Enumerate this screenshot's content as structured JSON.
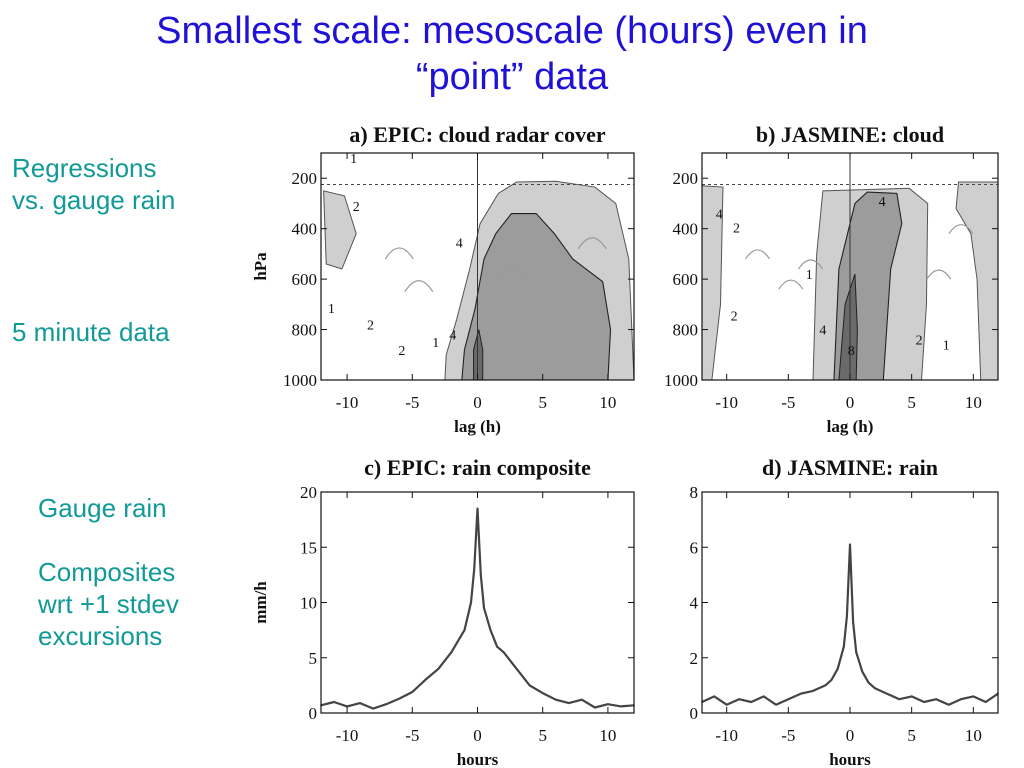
{
  "slide": {
    "title_line1": "Smallest scale: mesoscale (hours) even in",
    "title_line2": "“point” data",
    "notes": {
      "regressions": [
        "Regressions",
        "vs. gauge rain"
      ],
      "five_minute": "5 minute data",
      "gauge_rain": "Gauge rain",
      "composites": [
        "Composites",
        "wrt +1 stdev",
        "excursions"
      ]
    },
    "colors": {
      "title": "#1f12d6",
      "notes": "#129a98"
    }
  },
  "chart_data": [
    {
      "id": "a",
      "type": "heatmap",
      "title": "a) EPIC: cloud radar cover",
      "xlabel": "lag (h)",
      "ylabel": "hPa",
      "xlim": [
        -12,
        12
      ],
      "ylim": [
        1000,
        100
      ],
      "x_ticks": [
        -10,
        -5,
        0,
        5,
        10
      ],
      "y_ticks": [
        200,
        400,
        600,
        800,
        1000
      ],
      "contour_labels": [
        "1",
        "2",
        "4",
        "1",
        "2",
        "4",
        "2",
        "1"
      ],
      "colors": {
        "light": "#cfcfcf",
        "medium": "#9c9c9c",
        "dark": "#6a6a6a"
      }
    },
    {
      "id": "b",
      "type": "heatmap",
      "title": "b) JASMINE: cloud",
      "xlabel": "lag (h)",
      "ylabel": "",
      "xlim": [
        -12,
        12
      ],
      "ylim": [
        1000,
        100
      ],
      "x_ticks": [
        -10,
        -5,
        0,
        5,
        10
      ],
      "y_ticks": [
        200,
        400,
        600,
        800,
        1000
      ],
      "contour_labels": [
        "4",
        "2",
        "1",
        "2",
        "4",
        "8",
        "4",
        "2",
        "1"
      ],
      "colors": {
        "light": "#cfcfcf",
        "medium": "#9c9c9c",
        "dark": "#6a6a6a"
      }
    },
    {
      "id": "c",
      "type": "line",
      "title": "c) EPIC: rain composite",
      "xlabel": "hours",
      "ylabel": "mm/h",
      "xlim": [
        -12,
        12
      ],
      "ylim": [
        0,
        20
      ],
      "x_ticks": [
        -10,
        -5,
        0,
        5,
        10
      ],
      "y_ticks": [
        0,
        5,
        10,
        15,
        20
      ],
      "x": [
        -12,
        -11,
        -10,
        -9,
        -8,
        -7,
        -6,
        -5,
        -4,
        -3,
        -2,
        -1.5,
        -1,
        -0.5,
        -0.25,
        0,
        0.25,
        0.5,
        1,
        1.5,
        2,
        3,
        4,
        5,
        6,
        7,
        8,
        9,
        10,
        11,
        12
      ],
      "values": [
        0.7,
        1.0,
        0.6,
        0.9,
        0.4,
        0.8,
        1.3,
        1.9,
        3.0,
        4.0,
        5.5,
        6.5,
        7.5,
        10.0,
        13.0,
        18.5,
        12.5,
        9.5,
        7.5,
        6.0,
        5.5,
        4.0,
        2.5,
        1.8,
        1.2,
        0.9,
        1.2,
        0.5,
        0.8,
        0.6,
        0.7
      ]
    },
    {
      "id": "d",
      "type": "line",
      "title": "d) JASMINE: rain",
      "xlabel": "hours",
      "ylabel": "",
      "xlim": [
        -12,
        12
      ],
      "ylim": [
        0,
        8
      ],
      "x_ticks": [
        -10,
        -5,
        0,
        5,
        10
      ],
      "y_ticks": [
        0,
        2,
        4,
        6,
        8
      ],
      "x": [
        -12,
        -11,
        -10,
        -9,
        -8,
        -7,
        -6,
        -5,
        -4,
        -3,
        -2,
        -1.5,
        -1,
        -0.5,
        -0.25,
        0,
        0.25,
        0.5,
        1,
        1.5,
        2,
        3,
        4,
        5,
        6,
        7,
        8,
        9,
        10,
        11,
        12
      ],
      "values": [
        0.4,
        0.6,
        0.3,
        0.5,
        0.4,
        0.6,
        0.3,
        0.5,
        0.7,
        0.8,
        1.0,
        1.2,
        1.6,
        2.4,
        3.5,
        6.1,
        3.3,
        2.2,
        1.5,
        1.1,
        0.9,
        0.7,
        0.5,
        0.6,
        0.4,
        0.5,
        0.3,
        0.5,
        0.6,
        0.4,
        0.7
      ]
    }
  ]
}
